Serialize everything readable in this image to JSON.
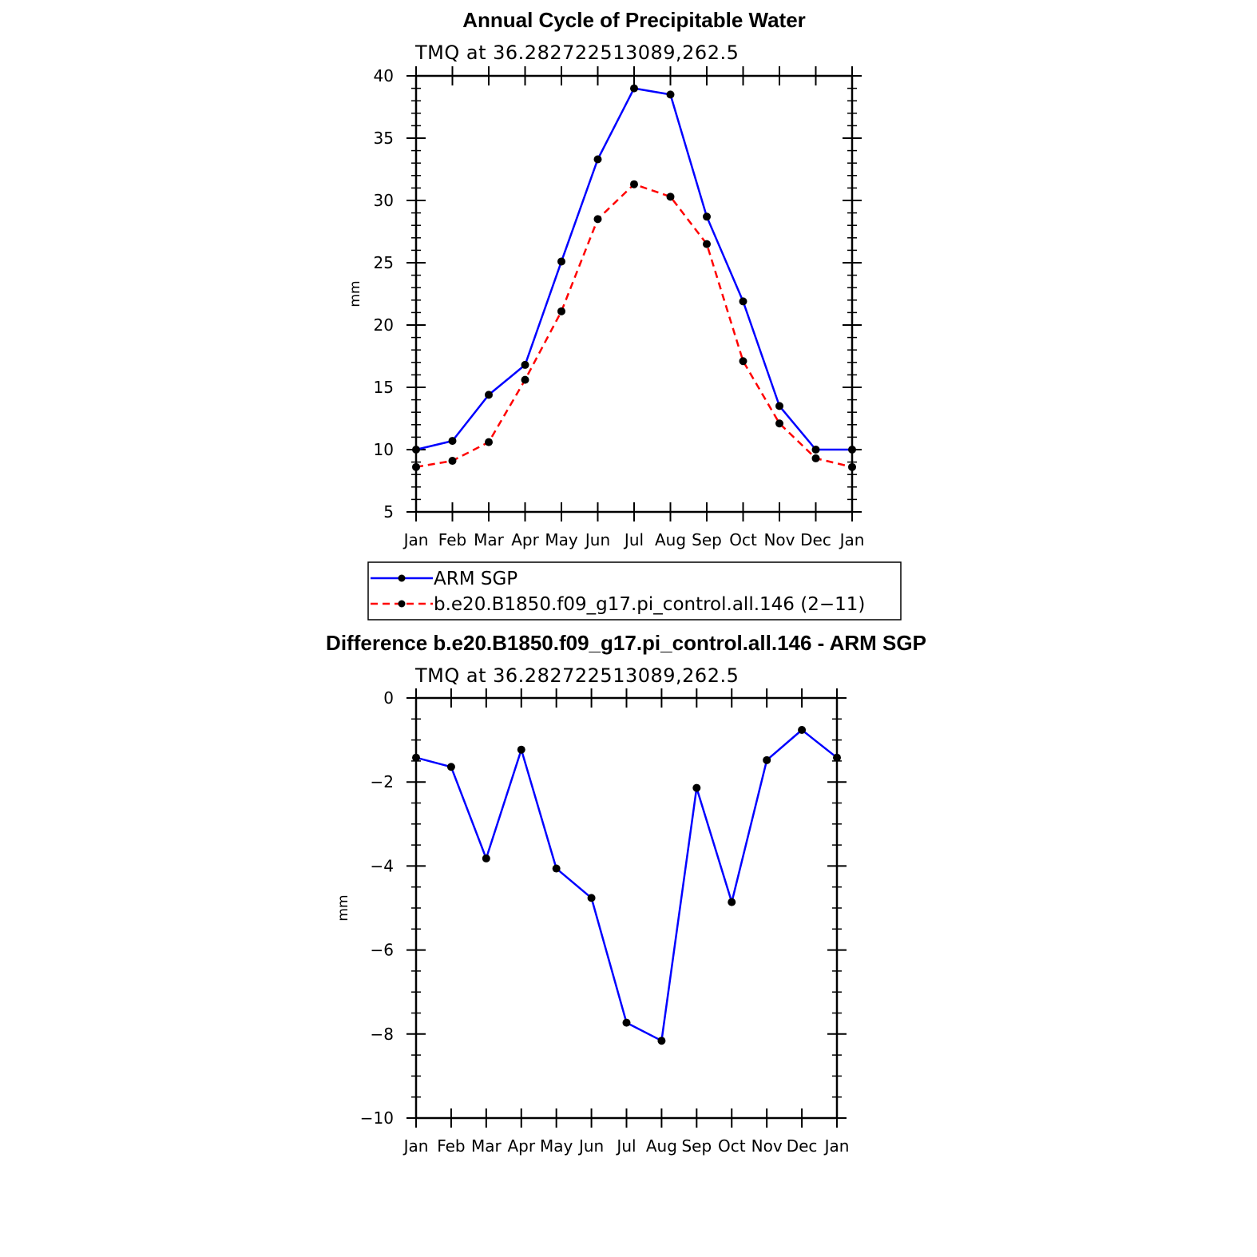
{
  "chart_data": [
    {
      "type": "line",
      "title": "Annual Cycle of Precipitable Water",
      "subtitle": "TMQ at 36.282722513089,262.5",
      "ylabel": "mm",
      "xlabel": "",
      "ylim": [
        5,
        40
      ],
      "y_ticks": [
        "5",
        "10",
        "15",
        "20",
        "25",
        "30",
        "35",
        "40"
      ],
      "categories": [
        "Jan",
        "Feb",
        "Mar",
        "Apr",
        "May",
        "Jun",
        "Jul",
        "Aug",
        "Sep",
        "Oct",
        "Nov",
        "Dec",
        "Jan"
      ],
      "grid": false,
      "legend_position": "bottom",
      "series": [
        {
          "name": "ARM SGP",
          "color": "#0000ff",
          "line_style": "solid",
          "marker": "dot",
          "values": [
            10.0,
            10.7,
            14.4,
            16.8,
            25.1,
            33.3,
            39.0,
            38.5,
            28.7,
            21.9,
            13.5,
            10.0,
            10.0
          ]
        },
        {
          "name": "b.e20.B1850.f09_g17.pi_control.all.146 (2−11)",
          "color": "#ff0000",
          "line_style": "dashed",
          "marker": "dot",
          "values": [
            8.6,
            9.1,
            10.6,
            15.6,
            21.1,
            28.5,
            31.3,
            30.3,
            26.5,
            17.1,
            12.1,
            9.3,
            8.6
          ]
        }
      ]
    },
    {
      "type": "line",
      "title": "Difference b.e20.B1850.f09_g17.pi_control.all.146 - ARM SGP",
      "subtitle": "TMQ at 36.282722513089,262.5",
      "ylabel": "mm",
      "xlabel": "",
      "ylim": [
        -10,
        0
      ],
      "y_ticks": [
        "−10",
        "−8",
        "−6",
        "−4",
        "−2",
        "0"
      ],
      "categories": [
        "Jan",
        "Feb",
        "Mar",
        "Apr",
        "May",
        "Jun",
        "Jul",
        "Aug",
        "Sep",
        "Oct",
        "Nov",
        "Dec",
        "Jan"
      ],
      "grid": false,
      "series": [
        {
          "color": "#0000ff",
          "line_style": "solid",
          "marker": "dot",
          "values": [
            -1.42,
            -1.64,
            -3.82,
            -1.23,
            -4.06,
            -4.76,
            -7.73,
            -8.16,
            -2.14,
            -4.86,
            -1.48,
            -0.76,
            -1.42
          ]
        }
      ]
    }
  ]
}
